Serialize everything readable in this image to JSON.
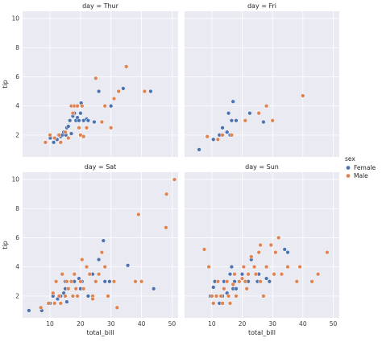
{
  "chart_data": {
    "type": "scatter",
    "facet_by": "day",
    "hue": "sex",
    "xlabel": "total_bill",
    "ylabel": "tip",
    "xlim": [
      1,
      52
    ],
    "ylim": [
      0.5,
      10.5
    ],
    "x_ticks": [
      10,
      20,
      30,
      40,
      50
    ],
    "y_ticks": [
      2,
      4,
      6,
      8,
      10
    ],
    "grid": true,
    "legend": {
      "title": "sex",
      "placement": "right",
      "entries": [
        {
          "name": "Female",
          "color": "#4c72b0"
        },
        {
          "name": "Male",
          "color": "#dd8452"
        }
      ]
    },
    "panels": [
      {
        "title": "day = Thur",
        "series": [
          {
            "name": "Female",
            "points": [
              [
                10.1,
                1.8
              ],
              [
                11.2,
                1.5
              ],
              [
                12.3,
                1.7
              ],
              [
                12.8,
                2.0
              ],
              [
                13.5,
                1.9
              ],
              [
                14.0,
                2.0
              ],
              [
                14.5,
                2.2
              ],
              [
                15.2,
                2.0
              ],
              [
                15.5,
                2.5
              ],
              [
                16.0,
                2.6
              ],
              [
                16.5,
                3.0
              ],
              [
                17.0,
                2.1
              ],
              [
                17.5,
                3.3
              ],
              [
                18.0,
                3.5
              ],
              [
                18.5,
                3.0
              ],
              [
                19.0,
                3.2
              ],
              [
                19.5,
                3.0
              ],
              [
                20.0,
                3.5
              ],
              [
                20.2,
                4.2
              ],
              [
                21.0,
                3.0
              ],
              [
                22.0,
                3.1
              ],
              [
                22.5,
                3.0
              ],
              [
                24.5,
                2.9
              ],
              [
                26.0,
                5.0
              ],
              [
                30.0,
                4.0
              ],
              [
                34.0,
                5.2
              ],
              [
                43.0,
                5.0
              ]
            ]
          },
          {
            "name": "Male",
            "points": [
              [
                8.5,
                1.5
              ],
              [
                10.0,
                2.0
              ],
              [
                11.5,
                1.8
              ],
              [
                13.0,
                2.0
              ],
              [
                13.5,
                1.5
              ],
              [
                15.0,
                2.2
              ],
              [
                16.0,
                1.8
              ],
              [
                17.0,
                4.0
              ],
              [
                17.5,
                3.5
              ],
              [
                18.0,
                4.0
              ],
              [
                19.0,
                4.0
              ],
              [
                19.5,
                2.5
              ],
              [
                20.0,
                2.0
              ],
              [
                20.5,
                4.0
              ],
              [
                21.0,
                1.9
              ],
              [
                22.0,
                2.5
              ],
              [
                25.0,
                5.9
              ],
              [
                28.0,
                4.0
              ],
              [
                30.0,
                2.5
              ],
              [
                31.0,
                4.5
              ],
              [
                35.0,
                6.7
              ],
              [
                41.0,
                5.0
              ],
              [
                32.5,
                5.0
              ],
              [
                27.0,
                2.9
              ]
            ]
          }
        ]
      },
      {
        "title": "day = Fri",
        "series": [
          {
            "name": "Female",
            "points": [
              [
                5.8,
                1.0
              ],
              [
                10.5,
                1.7
              ],
              [
                12.5,
                2.0
              ],
              [
                13.5,
                2.5
              ],
              [
                15.0,
                2.2
              ],
              [
                15.5,
                3.5
              ],
              [
                16.0,
                2.0
              ],
              [
                16.5,
                3.0
              ],
              [
                17.0,
                4.3
              ],
              [
                18.0,
                3.0
              ],
              [
                22.5,
                3.5
              ],
              [
                27.0,
                2.9
              ]
            ]
          },
          {
            "name": "Male",
            "points": [
              [
                8.5,
                1.9
              ],
              [
                12.0,
                1.7
              ],
              [
                13.5,
                2.0
              ],
              [
                16.5,
                2.0
              ],
              [
                21.0,
                3.0
              ],
              [
                25.5,
                3.5
              ],
              [
                28.0,
                4.0
              ],
              [
                30.0,
                3.0
              ],
              [
                40.0,
                4.7
              ]
            ]
          }
        ]
      },
      {
        "title": "day = Sat",
        "series": [
          {
            "name": "Female",
            "points": [
              [
                3.1,
                1.0
              ],
              [
                7.3,
                1.0
              ],
              [
                10.0,
                1.5
              ],
              [
                11.0,
                2.0
              ],
              [
                12.5,
                1.8
              ],
              [
                13.5,
                2.0
              ],
              [
                14.5,
                2.2
              ],
              [
                15.0,
                3.0
              ],
              [
                15.0,
                2.5
              ],
              [
                17.0,
                3.0
              ],
              [
                18.0,
                3.0
              ],
              [
                19.5,
                3.2
              ],
              [
                20.0,
                2.5
              ],
              [
                20.5,
                3.0
              ],
              [
                22.5,
                2.0
              ],
              [
                24.0,
                3.5
              ],
              [
                26.0,
                4.5
              ],
              [
                28.0,
                3.0
              ],
              [
                27.5,
                5.8
              ],
              [
                29.5,
                3.0
              ],
              [
                35.5,
                4.1
              ],
              [
                44.0,
                2.5
              ],
              [
                15.5,
                1.6
              ]
            ]
          },
          {
            "name": "Male",
            "points": [
              [
                7.0,
                1.2
              ],
              [
                9.5,
                1.5
              ],
              [
                11.0,
                2.2
              ],
              [
                11.5,
                1.5
              ],
              [
                12.0,
                3.0
              ],
              [
                13.0,
                2.0
              ],
              [
                13.5,
                1.5
              ],
              [
                14.0,
                3.5
              ],
              [
                15.0,
                2.0
              ],
              [
                15.5,
                3.0
              ],
              [
                16.0,
                2.5
              ],
              [
                17.0,
                3.0
              ],
              [
                17.5,
                2.0
              ],
              [
                18.0,
                3.5
              ],
              [
                18.5,
                2.5
              ],
              [
                19.0,
                2.0
              ],
              [
                20.0,
                3.0
              ],
              [
                20.5,
                4.5
              ],
              [
                21.0,
                2.5
              ],
              [
                22.0,
                4.0
              ],
              [
                23.0,
                3.5
              ],
              [
                24.0,
                2.0
              ],
              [
                25.0,
                3.0
              ],
              [
                26.0,
                3.5
              ],
              [
                27.0,
                5.0
              ],
              [
                28.0,
                4.0
              ],
              [
                29.0,
                2.0
              ],
              [
                31.0,
                3.0
              ],
              [
                32.0,
                1.2
              ],
              [
                38.0,
                3.0
              ],
              [
                39.0,
                7.6
              ],
              [
                40.0,
                3.0
              ],
              [
                48.0,
                6.7
              ],
              [
                48.2,
                9.0
              ],
              [
                50.8,
                10.0
              ],
              [
                24.0,
                1.8
              ]
            ]
          }
        ]
      },
      {
        "title": "day = Sun",
        "series": [
          {
            "name": "Female",
            "points": [
              [
                9.5,
                2.0
              ],
              [
                10.5,
                2.6
              ],
              [
                11.0,
                3.0
              ],
              [
                12.5,
                1.5
              ],
              [
                13.5,
                2.0
              ],
              [
                14.0,
                3.0
              ],
              [
                15.0,
                2.2
              ],
              [
                16.0,
                3.5
              ],
              [
                17.0,
                2.5
              ],
              [
                17.5,
                3.0
              ],
              [
                18.0,
                2.5
              ],
              [
                20.0,
                3.5
              ],
              [
                22.0,
                3.0
              ],
              [
                23.0,
                4.5
              ],
              [
                25.0,
                3.0
              ],
              [
                25.5,
                3.5
              ],
              [
                29.0,
                3.0
              ],
              [
                34.0,
                5.2
              ],
              [
                35.0,
                5.0
              ],
              [
                16.5,
                4.0
              ],
              [
                28.0,
                3.2
              ]
            ]
          },
          {
            "name": "Male",
            "points": [
              [
                7.5,
                5.2
              ],
              [
                9.0,
                4.0
              ],
              [
                10.0,
                2.0
              ],
              [
                10.5,
                1.5
              ],
              [
                11.5,
                2.0
              ],
              [
                12.0,
                3.0
              ],
              [
                13.0,
                2.0
              ],
              [
                13.5,
                1.5
              ],
              [
                14.0,
                2.5
              ],
              [
                15.0,
                3.0
              ],
              [
                15.5,
                2.0
              ],
              [
                16.0,
                1.5
              ],
              [
                17.0,
                2.8
              ],
              [
                17.5,
                3.5
              ],
              [
                18.0,
                2.0
              ],
              [
                19.0,
                3.0
              ],
              [
                20.0,
                3.2
              ],
              [
                20.5,
                4.0
              ],
              [
                21.0,
                3.0
              ],
              [
                21.5,
                2.5
              ],
              [
                22.0,
                3.5
              ],
              [
                23.0,
                4.7
              ],
              [
                24.0,
                4.0
              ],
              [
                24.5,
                3.5
              ],
              [
                25.5,
                5.0
              ],
              [
                26.0,
                3.0
              ],
              [
                27.0,
                2.0
              ],
              [
                28.0,
                4.0
              ],
              [
                29.5,
                5.5
              ],
              [
                30.5,
                3.5
              ],
              [
                31.0,
                5.0
              ],
              [
                32.0,
                6.0
              ],
              [
                33.0,
                3.5
              ],
              [
                35.0,
                4.0
              ],
              [
                38.0,
                3.0
              ],
              [
                39.0,
                4.0
              ],
              [
                43.0,
                3.0
              ],
              [
                45.0,
                3.5
              ],
              [
                48.0,
                5.0
              ],
              [
                26.0,
                5.5
              ]
            ]
          }
        ]
      }
    ]
  }
}
